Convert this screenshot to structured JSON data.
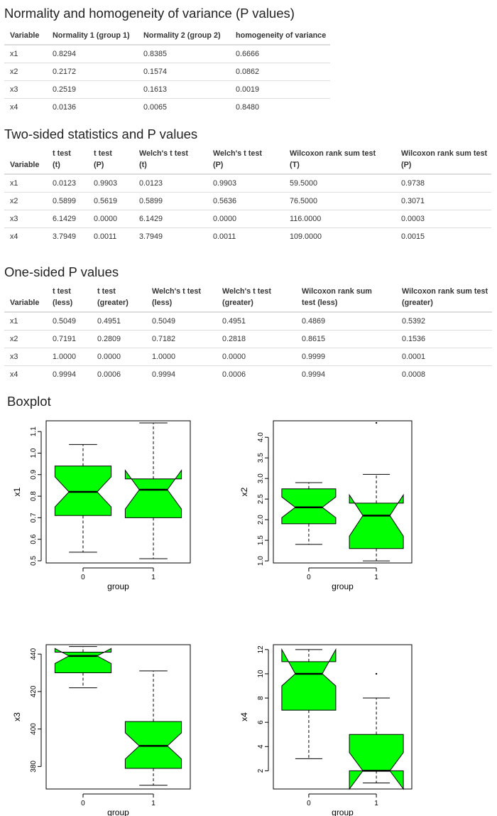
{
  "sections": {
    "normality": {
      "title": "Normality and homogeneity of variance (P values)",
      "headers": [
        [
          "Variable"
        ],
        [
          "Normality 1 (group 1)"
        ],
        [
          "Normality 2 (group 2)"
        ],
        [
          "homogeneity of variance"
        ]
      ],
      "rows": [
        [
          "x1",
          "0.8294",
          "0.8385",
          "0.6666"
        ],
        [
          "x2",
          "0.2172",
          "0.1574",
          "0.0862"
        ],
        [
          "x3",
          "0.2519",
          "0.1613",
          "0.0019"
        ],
        [
          "x4",
          "0.0136",
          "0.0065",
          "0.8480"
        ]
      ]
    },
    "two_sided": {
      "title": "Two-sided statistics and P values",
      "headers": [
        [
          "Variable"
        ],
        [
          "t test",
          "(t)"
        ],
        [
          "t test",
          "(P)"
        ],
        [
          "Welch's t test",
          "(t)"
        ],
        [
          "Welch's t test",
          "(P)"
        ],
        [
          "Wilcoxon rank sum test",
          "(T)"
        ],
        [
          "Wilcoxon rank sum test",
          "(P)"
        ]
      ],
      "rows": [
        [
          "x1",
          "0.0123",
          "0.9903",
          "0.0123",
          "0.9903",
          "59.5000",
          "0.9738"
        ],
        [
          "x2",
          "0.5899",
          "0.5619",
          "0.5899",
          "0.5636",
          "76.5000",
          "0.3071"
        ],
        [
          "x3",
          "6.1429",
          "0.0000",
          "6.1429",
          "0.0000",
          "116.0000",
          "0.0003"
        ],
        [
          "x4",
          "3.7949",
          "0.0011",
          "3.7949",
          "0.0011",
          "109.0000",
          "0.0015"
        ]
      ]
    },
    "one_sided": {
      "title": "One-sided P values",
      "headers": [
        [
          "Variable"
        ],
        [
          "t test",
          "(less)"
        ],
        [
          "t test",
          "(greater)"
        ],
        [
          "Welch's t test",
          "(less)"
        ],
        [
          "Welch's t test",
          "(greater)"
        ],
        [
          "Wilcoxon rank sum",
          "test (less)"
        ],
        [
          "Wilcoxon rank sum test",
          "(greater)"
        ]
      ],
      "rows": [
        [
          "x1",
          "0.5049",
          "0.4951",
          "0.5049",
          "0.4951",
          "0.4869",
          "0.5392"
        ],
        [
          "x2",
          "0.7191",
          "0.2809",
          "0.7182",
          "0.2818",
          "0.8615",
          "0.1536"
        ],
        [
          "x3",
          "1.0000",
          "0.0000",
          "1.0000",
          "0.0000",
          "0.9999",
          "0.0001"
        ],
        [
          "x4",
          "0.9994",
          "0.0006",
          "0.9994",
          "0.0006",
          "0.9994",
          "0.0008"
        ]
      ]
    }
  },
  "boxplot": {
    "title": "Boxplot",
    "fill_color": "#00ff00"
  },
  "chart_data": [
    {
      "type": "boxplot",
      "variable": "x1",
      "xlabel": "group",
      "ylabel": "x1",
      "categories": [
        "0",
        "1"
      ],
      "ylim": [
        0.49,
        1.15
      ],
      "yticks": [
        0.5,
        0.6,
        0.7,
        0.8,
        0.9,
        1.0,
        1.1
      ],
      "yticklabels": [
        "0.5",
        "0.6",
        "0.7",
        "0.8",
        "0.9",
        "1.0",
        "1.1"
      ],
      "groups": [
        {
          "name": "0",
          "min": 0.54,
          "q1": 0.71,
          "median": 0.82,
          "q3": 0.94,
          "max": 1.04,
          "notch_low": 0.75,
          "notch_high": 0.89,
          "outliers": []
        },
        {
          "name": "1",
          "min": 0.51,
          "q1": 0.7,
          "median": 0.83,
          "q3": 0.88,
          "max": 1.14,
          "notch_low": 0.74,
          "notch_high": 0.92,
          "outliers": []
        }
      ]
    },
    {
      "type": "boxplot",
      "variable": "x2",
      "xlabel": "group",
      "ylabel": "x2",
      "categories": [
        "0",
        "1"
      ],
      "ylim": [
        0.95,
        4.4
      ],
      "yticks": [
        1.0,
        1.5,
        2.0,
        2.5,
        3.0,
        3.5,
        4.0
      ],
      "yticklabels": [
        "1.0",
        "1.5",
        "2.0",
        "2.5",
        "3.0",
        "3.5",
        "4.0"
      ],
      "groups": [
        {
          "name": "0",
          "min": 1.4,
          "q1": 1.9,
          "median": 2.3,
          "q3": 2.75,
          "max": 2.9,
          "notch_low": 2.05,
          "notch_high": 2.55,
          "outliers": []
        },
        {
          "name": "1",
          "min": 1.0,
          "q1": 1.3,
          "median": 2.1,
          "q3": 2.4,
          "max": 3.1,
          "notch_low": 1.6,
          "notch_high": 2.6,
          "outliers": [
            4.35
          ]
        }
      ]
    },
    {
      "type": "boxplot",
      "variable": "x3",
      "xlabel": "group",
      "ylabel": "x3",
      "categories": [
        "0",
        "1"
      ],
      "ylim": [
        368,
        445
      ],
      "yticks": [
        380,
        400,
        420,
        440
      ],
      "yticklabels": [
        "380",
        "400",
        "420",
        "440"
      ],
      "groups": [
        {
          "name": "0",
          "min": 422,
          "q1": 430,
          "median": 439,
          "q3": 441,
          "max": 444,
          "notch_low": 435,
          "notch_high": 443,
          "outliers": []
        },
        {
          "name": "1",
          "min": 370,
          "q1": 379,
          "median": 391,
          "q3": 404,
          "max": 431,
          "notch_low": 384,
          "notch_high": 398,
          "outliers": []
        }
      ]
    },
    {
      "type": "boxplot",
      "variable": "x4",
      "xlabel": "group",
      "ylabel": "x4",
      "categories": [
        "0",
        "1"
      ],
      "ylim": [
        0.5,
        12.4
      ],
      "yticks": [
        2,
        4,
        6,
        8,
        10,
        12
      ],
      "yticklabels": [
        "2",
        "4",
        "6",
        "8",
        "10",
        "12"
      ],
      "groups": [
        {
          "name": "0",
          "min": 3,
          "q1": 7,
          "median": 10,
          "q3": 11,
          "max": 12,
          "notch_low": 9,
          "notch_high": 12,
          "outliers": []
        },
        {
          "name": "1",
          "min": 1,
          "q1": 2,
          "median": 2,
          "q3": 5,
          "max": 8,
          "notch_low": 0.5,
          "notch_high": 3.5,
          "outliers": [
            10
          ]
        }
      ]
    }
  ]
}
